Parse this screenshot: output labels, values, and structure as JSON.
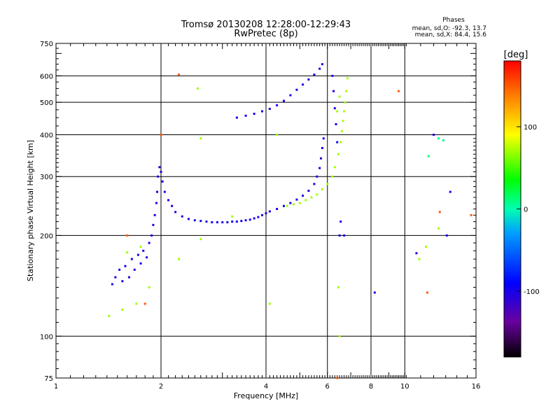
{
  "chart_data": {
    "type": "scatter",
    "title": "Tromsø 20130208 12:28:00-12:29:43",
    "subtitle": "RwPretec (8p)",
    "stats": {
      "heading": "Phases",
      "line1": "mean, sd,O: -92.3, 13.7",
      "line2": "mean, sd,X:  84.4, 15.6"
    },
    "xlabel": "Frequency [MHz]",
    "ylabel": "Stationary phase Virtual Height [km]",
    "x_scale": "log",
    "y_scale": "log",
    "xlim": [
      1,
      16
    ],
    "ylim": [
      75,
      750
    ],
    "x_ticks": [
      1,
      2,
      4,
      6,
      8,
      10,
      16
    ],
    "x_tick_labels": [
      "1",
      "2",
      "4",
      "6",
      "8",
      "10",
      "16"
    ],
    "y_ticks": [
      75,
      100,
      200,
      300,
      400,
      500,
      600,
      750
    ],
    "y_tick_labels": [
      "75",
      "100",
      "200",
      "300",
      "400",
      "500",
      "600",
      "750"
    ],
    "grid": true,
    "colorbar": {
      "label": "[deg]",
      "range": [
        -180,
        180
      ],
      "ticks": [
        100,
        0,
        -100
      ],
      "tick_labels": [
        "100",
        "0",
        "-100"
      ]
    },
    "series": [
      {
        "color_phase": -100,
        "points": [
          [
            1.45,
            143
          ],
          [
            1.48,
            150
          ],
          [
            1.52,
            158
          ],
          [
            1.55,
            146
          ],
          [
            1.58,
            162
          ],
          [
            1.62,
            150
          ],
          [
            1.65,
            170
          ],
          [
            1.68,
            158
          ],
          [
            1.72,
            175
          ],
          [
            1.75,
            165
          ],
          [
            1.78,
            180
          ],
          [
            1.82,
            172
          ],
          [
            1.85,
            190
          ],
          [
            1.88,
            200
          ],
          [
            1.9,
            215
          ],
          [
            1.92,
            230
          ],
          [
            1.94,
            250
          ],
          [
            1.95,
            270
          ],
          [
            1.96,
            300
          ],
          [
            1.98,
            320
          ],
          [
            2.0,
            310
          ],
          [
            2.02,
            290
          ],
          [
            2.05,
            270
          ],
          [
            2.1,
            255
          ],
          [
            2.15,
            245
          ],
          [
            2.2,
            235
          ],
          [
            2.3,
            228
          ],
          [
            2.4,
            224
          ],
          [
            2.5,
            222
          ],
          [
            2.6,
            221
          ],
          [
            2.7,
            220
          ],
          [
            2.8,
            219
          ],
          [
            2.9,
            219
          ],
          [
            3.0,
            219
          ],
          [
            3.1,
            219
          ],
          [
            3.2,
            220
          ],
          [
            3.3,
            220
          ],
          [
            3.4,
            221
          ],
          [
            3.5,
            222
          ],
          [
            3.6,
            223
          ],
          [
            3.7,
            225
          ],
          [
            3.8,
            227
          ],
          [
            3.9,
            230
          ],
          [
            4.0,
            233
          ],
          [
            4.1,
            236
          ],
          [
            4.3,
            240
          ],
          [
            4.5,
            245
          ],
          [
            4.7,
            250
          ],
          [
            4.9,
            256
          ],
          [
            5.1,
            263
          ],
          [
            5.3,
            272
          ],
          [
            5.5,
            285
          ],
          [
            5.6,
            300
          ],
          [
            5.7,
            318
          ],
          [
            5.75,
            340
          ],
          [
            5.8,
            365
          ],
          [
            5.85,
            390
          ],
          [
            3.3,
            450
          ],
          [
            3.5,
            456
          ],
          [
            3.7,
            462
          ],
          [
            3.9,
            470
          ],
          [
            4.1,
            478
          ],
          [
            4.3,
            490
          ],
          [
            4.5,
            505
          ],
          [
            4.7,
            525
          ],
          [
            4.9,
            545
          ],
          [
            5.1,
            565
          ],
          [
            5.3,
            585
          ],
          [
            5.5,
            605
          ],
          [
            5.7,
            630
          ],
          [
            5.8,
            650
          ],
          [
            6.2,
            600
          ],
          [
            6.25,
            540
          ],
          [
            6.3,
            480
          ],
          [
            6.35,
            430
          ],
          [
            6.4,
            380
          ],
          [
            6.5,
            200
          ],
          [
            6.55,
            220
          ],
          [
            6.7,
            200
          ],
          [
            8.2,
            135
          ],
          [
            10.8,
            177
          ],
          [
            12.1,
            400
          ],
          [
            13.2,
            200
          ],
          [
            13.5,
            270
          ]
        ]
      },
      {
        "color_phase": 70,
        "points": [
          [
            1.42,
            115
          ],
          [
            1.55,
            120
          ],
          [
            1.6,
            178
          ],
          [
            1.7,
            125
          ],
          [
            1.75,
            185
          ],
          [
            1.85,
            140
          ],
          [
            2.25,
            170
          ],
          [
            2.55,
            550
          ],
          [
            2.6,
            195
          ],
          [
            2.6,
            390
          ],
          [
            3.2,
            228
          ],
          [
            4.1,
            125
          ],
          [
            4.3,
            400
          ],
          [
            4.6,
            245
          ],
          [
            4.8,
            248
          ],
          [
            5.0,
            250
          ],
          [
            5.2,
            255
          ],
          [
            5.4,
            260
          ],
          [
            5.6,
            265
          ],
          [
            5.8,
            275
          ],
          [
            6.0,
            285
          ],
          [
            6.2,
            300
          ],
          [
            6.3,
            320
          ],
          [
            6.45,
            350
          ],
          [
            6.55,
            380
          ],
          [
            6.6,
            410
          ],
          [
            6.65,
            440
          ],
          [
            6.7,
            470
          ],
          [
            6.75,
            500
          ],
          [
            6.8,
            540
          ],
          [
            6.85,
            590
          ],
          [
            6.4,
            470
          ],
          [
            6.5,
            520
          ],
          [
            6.45,
            140
          ],
          [
            6.5,
            100
          ],
          [
            11.0,
            170
          ],
          [
            11.5,
            185
          ],
          [
            12.5,
            210
          ]
        ]
      },
      {
        "color_phase": 150,
        "points": [
          [
            1.6,
            200
          ],
          [
            1.8,
            125
          ],
          [
            2.0,
            400
          ],
          [
            2.25,
            605
          ],
          [
            6.4,
            75
          ],
          [
            9.6,
            540
          ],
          [
            11.6,
            135
          ],
          [
            12.6,
            235
          ],
          [
            15.5,
            230
          ]
        ]
      },
      {
        "color_phase": 10,
        "points": [
          [
            11.7,
            345
          ],
          [
            12.5,
            390
          ],
          [
            12.9,
            385
          ]
        ]
      }
    ]
  }
}
